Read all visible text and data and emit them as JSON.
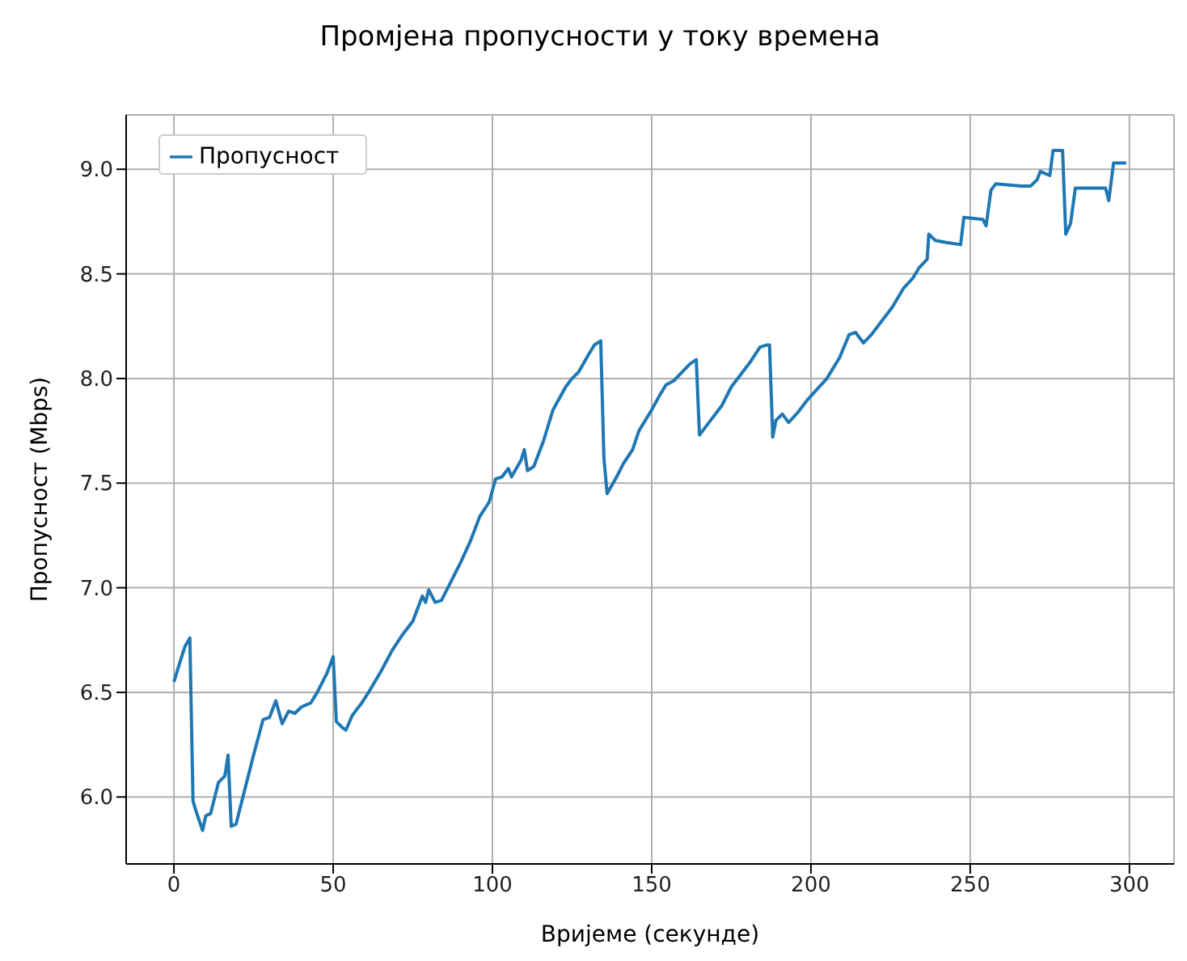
{
  "chart_data": {
    "type": "line",
    "title": "Промјена пропусности у току времена",
    "xlabel": "Вријеме (секунде)",
    "ylabel": "Пропусност (Mbps)",
    "x": [
      0,
      2,
      3.5,
      5,
      6,
      7,
      9,
      10,
      11.5,
      14,
      16,
      17,
      18,
      19.5,
      22,
      25,
      28,
      30,
      32,
      34,
      35,
      36,
      38,
      40,
      43,
      45,
      48,
      50,
      51,
      53,
      54,
      56,
      59,
      61.5,
      65,
      68.5,
      71.5,
      75,
      78,
      79,
      80,
      82,
      84,
      86,
      90,
      93,
      96,
      99,
      101,
      103,
      105,
      106,
      109,
      110,
      111,
      113,
      116,
      119,
      123,
      125,
      127,
      130,
      132,
      134,
      135,
      136,
      139,
      141,
      144,
      146,
      150,
      152.5,
      154.5,
      157,
      159.5,
      162,
      164,
      165,
      167,
      168.5,
      172,
      175,
      178,
      181,
      184,
      186,
      187,
      188,
      189,
      191,
      193,
      196,
      199,
      202,
      205,
      209,
      212,
      214,
      216.5,
      219,
      222,
      225.5,
      229,
      232,
      234,
      236.5,
      237,
      239,
      242.5,
      247,
      248,
      254,
      255,
      256.5,
      258,
      266,
      269,
      271,
      272,
      275,
      276,
      279,
      280,
      281.5,
      283,
      292.5,
      293.5,
      295,
      299
    ],
    "series": [
      {
        "name": "Пропусност",
        "color": "#1f77b4",
        "values": [
          6.55,
          6.65,
          6.72,
          6.76,
          5.98,
          5.93,
          5.84,
          5.91,
          5.92,
          6.07,
          6.1,
          6.2,
          5.86,
          5.87,
          6.02,
          6.2,
          6.37,
          6.38,
          6.46,
          6.35,
          6.38,
          6.41,
          6.4,
          6.43,
          6.45,
          6.5,
          6.59,
          6.67,
          6.36,
          6.33,
          6.32,
          6.39,
          6.45,
          6.51,
          6.6,
          6.7,
          6.77,
          6.84,
          6.96,
          6.93,
          6.99,
          6.93,
          6.94,
          7.0,
          7.12,
          7.22,
          7.34,
          7.41,
          7.52,
          7.53,
          7.57,
          7.53,
          7.61,
          7.66,
          7.56,
          7.58,
          7.7,
          7.85,
          7.96,
          8.0,
          8.03,
          8.11,
          8.16,
          8.18,
          7.62,
          7.45,
          7.53,
          7.59,
          7.66,
          7.75,
          7.85,
          7.92,
          7.97,
          7.99,
          8.03,
          8.07,
          8.09,
          7.73,
          7.77,
          7.8,
          7.87,
          7.96,
          8.02,
          8.08,
          8.15,
          8.16,
          8.16,
          7.72,
          7.8,
          7.83,
          7.79,
          7.84,
          7.9,
          7.95,
          8.0,
          8.1,
          8.21,
          8.22,
          8.17,
          8.21,
          8.27,
          8.34,
          8.43,
          8.48,
          8.53,
          8.57,
          8.69,
          8.66,
          8.65,
          8.64,
          8.77,
          8.76,
          8.73,
          8.9,
          8.93,
          8.92,
          8.92,
          8.95,
          8.99,
          8.97,
          9.09,
          9.09,
          8.69,
          8.74,
          8.91,
          8.91,
          8.85,
          9.03,
          9.03
        ]
      }
    ],
    "xlim": [
      -15,
      314
    ],
    "xticks": [
      0,
      50,
      100,
      150,
      200,
      250,
      300
    ],
    "ylim": [
      5.68,
      9.26
    ],
    "yticks": [
      {
        "value": 6,
        "label": "6.0"
      },
      {
        "value": 6.5,
        "label": "6.5"
      },
      {
        "value": 7,
        "label": "7.0"
      },
      {
        "value": 7.5,
        "label": "7.5"
      },
      {
        "value": 8,
        "label": "8.0"
      },
      {
        "value": 8.5,
        "label": "8.5"
      },
      {
        "value": 9,
        "label": "9.0"
      }
    ],
    "grid": true,
    "legend": "top left",
    "marker": "none",
    "line_style": "solid"
  }
}
